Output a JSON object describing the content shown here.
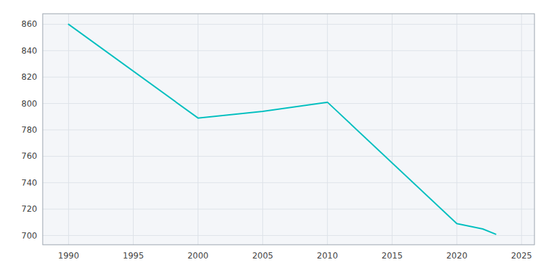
{
  "chart_data": {
    "type": "line",
    "x": [
      1990,
      2000,
      2005,
      2010,
      2020,
      2022,
      2023
    ],
    "values": [
      860,
      789,
      794,
      801,
      709,
      705,
      701
    ],
    "color": "#00BFBF",
    "xlim": [
      1988,
      2026
    ],
    "ylim": [
      693,
      868
    ],
    "xticks": [
      1990,
      1995,
      2000,
      2005,
      2010,
      2015,
      2020,
      2025
    ],
    "yticks": [
      700,
      720,
      740,
      760,
      780,
      800,
      820,
      840,
      860
    ],
    "grid": true
  }
}
